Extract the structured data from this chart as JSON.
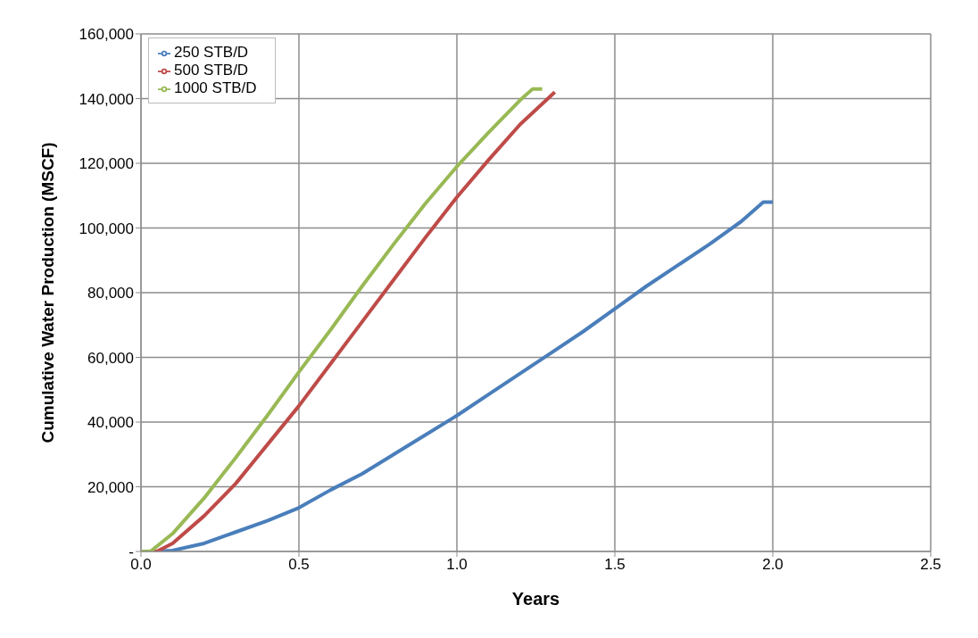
{
  "chart_data": {
    "type": "line",
    "xlabel": "Years",
    "ylabel": "Cumulative Water Production (MSCF)",
    "xlim": [
      0,
      2.5
    ],
    "xticks": [
      {
        "value": 0,
        "label": "0.0"
      },
      {
        "value": 0.5,
        "label": "0.5"
      },
      {
        "value": 1,
        "label": "1.0"
      },
      {
        "value": 1.5,
        "label": "1.5"
      },
      {
        "value": 2,
        "label": "2.0"
      },
      {
        "value": 2.5,
        "label": "2.5"
      }
    ],
    "ylim": [
      0,
      160000
    ],
    "yticks": [
      {
        "value": 0,
        "label": "-"
      },
      {
        "value": 20000,
        "label": "20,000"
      },
      {
        "value": 40000,
        "label": "40,000"
      },
      {
        "value": 60000,
        "label": "60,000"
      },
      {
        "value": 80000,
        "label": "80,000"
      },
      {
        "value": 100000,
        "label": "100,000"
      },
      {
        "value": 120000,
        "label": "120,000"
      },
      {
        "value": 140000,
        "label": "140,000"
      },
      {
        "value": 160000,
        "label": "160,000"
      }
    ],
    "grid": true,
    "legend": "top left",
    "marker": "none",
    "line_style": "solid",
    "series": [
      {
        "name": "250 STB/D",
        "color": "#4a7ebb",
        "x": [
          0,
          0.05,
          0.1,
          0.2,
          0.3,
          0.4,
          0.5,
          0.6,
          0.7,
          0.8,
          0.9,
          1.0,
          1.1,
          1.2,
          1.3,
          1.4,
          1.5,
          1.6,
          1.7,
          1.8,
          1.9,
          1.97,
          2.0
        ],
        "values": [
          0,
          0,
          300,
          2500,
          6000,
          9500,
          13500,
          19000,
          24000,
          30000,
          36000,
          42000,
          48500,
          55000,
          61500,
          68000,
          75000,
          82000,
          88500,
          95000,
          102000,
          108000,
          108000
        ]
      },
      {
        "name": "500 STB/D",
        "color": "#be4b48",
        "x": [
          0,
          0.05,
          0.1,
          0.2,
          0.3,
          0.4,
          0.5,
          0.6,
          0.7,
          0.8,
          0.9,
          1.0,
          1.1,
          1.2,
          1.31
        ],
        "values": [
          0,
          0,
          2500,
          11000,
          21000,
          33000,
          45000,
          58000,
          71000,
          84000,
          97000,
          109500,
          121000,
          132000,
          142000
        ]
      },
      {
        "name": "1000 STB/D",
        "color": "#98b954",
        "x": [
          0,
          0.03,
          0.1,
          0.2,
          0.3,
          0.4,
          0.5,
          0.6,
          0.7,
          0.8,
          0.9,
          1.0,
          1.1,
          1.2,
          1.24,
          1.27
        ],
        "values": [
          0,
          0,
          5500,
          16500,
          29000,
          42000,
          55500,
          68500,
          82000,
          95000,
          107500,
          119000,
          129500,
          139500,
          143000,
          143000
        ]
      }
    ]
  }
}
